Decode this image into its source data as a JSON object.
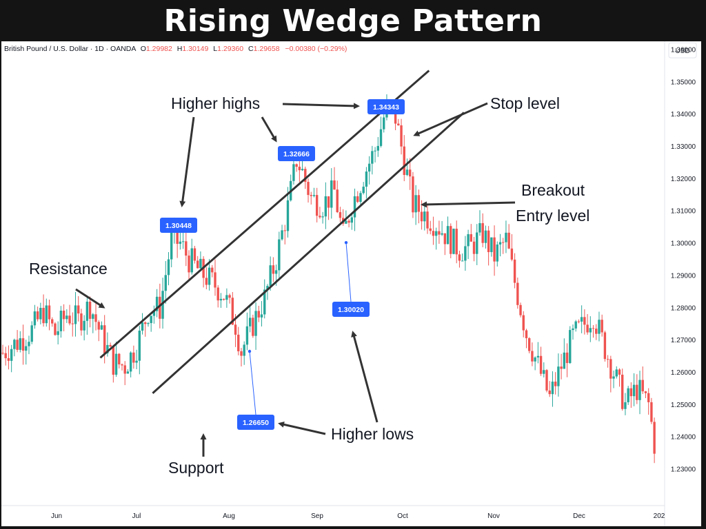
{
  "title": "Rising Wedge Pattern",
  "symbol_header": {
    "name": "British Pound / U.S. Dollar · 1D · OANDA",
    "open_label": "O",
    "open": "1.29982",
    "high_label": "H",
    "high": "1.30149",
    "low_label": "L",
    "low": "1.29360",
    "close_label": "C",
    "close": "1.29658",
    "change": "−0.00380 (−0.29%)"
  },
  "colors": {
    "up": "#26a69a",
    "down": "#ef5350",
    "callout": "#2962ff",
    "pattern_line": "#333333",
    "text": "#131722"
  },
  "chart_data": {
    "type": "candlestick",
    "currency_label": "USD",
    "y_ticks": [
      "1.36000",
      "1.35000",
      "1.34000",
      "1.33000",
      "1.32000",
      "1.31000",
      "1.30000",
      "1.29000",
      "1.28000",
      "1.27000",
      "1.26000",
      "1.25000",
      "1.24000",
      "1.23000"
    ],
    "ylim": [
      1.228,
      1.367
    ],
    "x_ticks": [
      "Jun",
      "Jul",
      "Aug",
      "Sep",
      "Oct",
      "Nov",
      "Dec",
      "202"
    ],
    "callouts": [
      {
        "label": "1.30448",
        "value": 1.30448
      },
      {
        "label": "1.32666",
        "value": 1.32666
      },
      {
        "label": "1.34343",
        "value": 1.34343
      },
      {
        "label": "1.26650",
        "value": 1.2665
      },
      {
        "label": "1.30020",
        "value": 1.3002
      }
    ],
    "annotations": [
      {
        "id": "higher-highs",
        "text": "Higher highs"
      },
      {
        "id": "stop-level",
        "text": "Stop level"
      },
      {
        "id": "breakout",
        "text": "Breakout"
      },
      {
        "id": "entry-level",
        "text": "Entry level"
      },
      {
        "id": "resistance",
        "text": "Resistance"
      },
      {
        "id": "higher-lows",
        "text": "Higher lows"
      },
      {
        "id": "support",
        "text": "Support"
      }
    ],
    "trend_lines": [
      {
        "name": "resistance",
        "from": {
          "day": 34,
          "price": 1.2645
        },
        "to": {
          "day": 147,
          "price": 1.3535
        }
      },
      {
        "name": "support",
        "from": {
          "day": 52,
          "price": 1.2535
        },
        "to": {
          "day": 159,
          "price": 1.3405
        }
      }
    ],
    "points": [
      {
        "day": 0,
        "price": 1.266
      },
      {
        "day": 6,
        "price": 1.27
      },
      {
        "day": 10,
        "price": 1.273
      },
      {
        "day": 14,
        "price": 1.279
      },
      {
        "day": 18,
        "price": 1.272
      },
      {
        "day": 22,
        "price": 1.278
      },
      {
        "day": 26,
        "price": 1.276
      },
      {
        "day": 30,
        "price": 1.281
      },
      {
        "day": 34,
        "price": 1.271
      },
      {
        "day": 38,
        "price": 1.263
      },
      {
        "day": 42,
        "price": 1.262
      },
      {
        "day": 46,
        "price": 1.268
      },
      {
        "day": 50,
        "price": 1.279
      },
      {
        "day": 54,
        "price": 1.28
      },
      {
        "day": 58,
        "price": 1.301
      },
      {
        "day": 61,
        "price": 1.3
      },
      {
        "day": 64,
        "price": 1.295
      },
      {
        "day": 68,
        "price": 1.291
      },
      {
        "day": 72,
        "price": 1.288
      },
      {
        "day": 76,
        "price": 1.284
      },
      {
        "day": 80,
        "price": 1.275
      },
      {
        "day": 82,
        "price": 1.2665
      },
      {
        "day": 86,
        "price": 1.275
      },
      {
        "day": 90,
        "price": 1.283
      },
      {
        "day": 94,
        "price": 1.295
      },
      {
        "day": 98,
        "price": 1.311
      },
      {
        "day": 101,
        "price": 1.326
      },
      {
        "day": 103,
        "price": 1.322
      },
      {
        "day": 106,
        "price": 1.314
      },
      {
        "day": 110,
        "price": 1.312
      },
      {
        "day": 114,
        "price": 1.316
      },
      {
        "day": 117,
        "price": 1.302
      },
      {
        "day": 120,
        "price": 1.312
      },
      {
        "day": 124,
        "price": 1.321
      },
      {
        "day": 128,
        "price": 1.329
      },
      {
        "day": 131,
        "price": 1.339
      },
      {
        "day": 133,
        "price": 1.342
      },
      {
        "day": 135,
        "price": 1.339
      },
      {
        "day": 137,
        "price": 1.33
      },
      {
        "day": 139,
        "price": 1.321
      },
      {
        "day": 141,
        "price": 1.312
      },
      {
        "day": 145,
        "price": 1.309
      },
      {
        "day": 149,
        "price": 1.306
      },
      {
        "day": 153,
        "price": 1.302
      },
      {
        "day": 157,
        "price": 1.298
      },
      {
        "day": 161,
        "price": 1.299
      },
      {
        "day": 165,
        "price": 1.303
      },
      {
        "day": 169,
        "price": 1.296
      },
      {
        "day": 173,
        "price": 1.301
      },
      {
        "day": 176,
        "price": 1.288
      },
      {
        "day": 180,
        "price": 1.272
      },
      {
        "day": 184,
        "price": 1.262
      },
      {
        "day": 188,
        "price": 1.252
      },
      {
        "day": 192,
        "price": 1.262
      },
      {
        "day": 196,
        "price": 1.271
      },
      {
        "day": 200,
        "price": 1.275
      },
      {
        "day": 203,
        "price": 1.278
      },
      {
        "day": 206,
        "price": 1.27
      },
      {
        "day": 210,
        "price": 1.26
      },
      {
        "day": 214,
        "price": 1.25
      },
      {
        "day": 218,
        "price": 1.255
      },
      {
        "day": 222,
        "price": 1.25
      },
      {
        "day": 224,
        "price": 1.238
      }
    ]
  }
}
